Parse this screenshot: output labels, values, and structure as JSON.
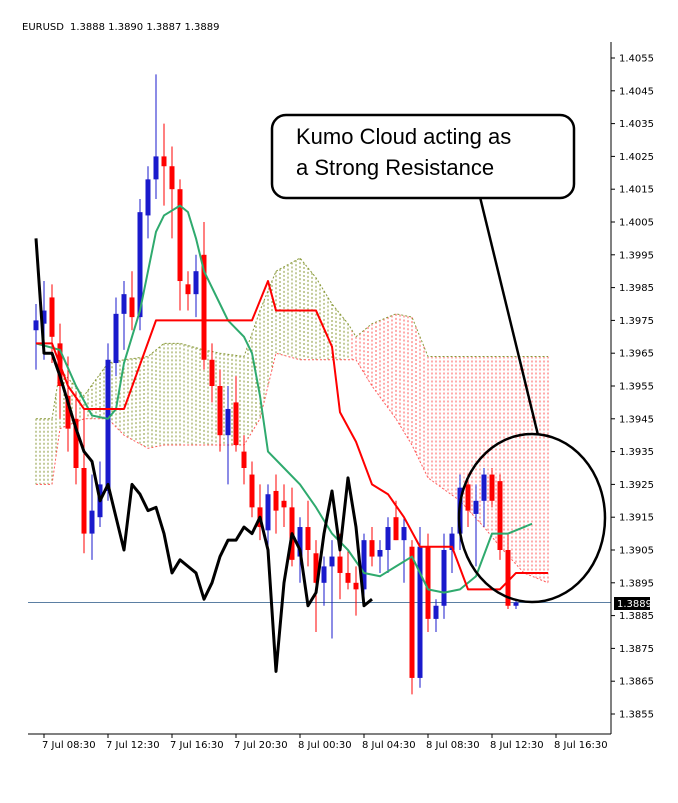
{
  "header": {
    "symbol": "EURUSD",
    "ohlc": "1.3888 1.3890 1.3887 1.3889"
  },
  "callout": {
    "line1": "Kumo Cloud acting as",
    "line2": "a Strong Resistance"
  },
  "colors": {
    "bull": "#1a1acc",
    "bear": "#ff0000",
    "tenkan": "#ff0000",
    "kijun": "#2faa6e",
    "chikou": "#000000",
    "cloud_bull": "#8a9a3a",
    "cloud_bear": "#ff5a5a",
    "current_price_line": "#5b7fa3"
  },
  "chart_data": {
    "type": "candlestick",
    "symbol": "EURUSD",
    "ylim": [
      1.385,
      1.406
    ],
    "y_ticks": [
      "1.4055",
      "1.4045",
      "1.4035",
      "1.4025",
      "1.4015",
      "1.4005",
      "1.3995",
      "1.3985",
      "1.3975",
      "1.3965",
      "1.3955",
      "1.3945",
      "1.3935",
      "1.3925",
      "1.3915",
      "1.3905",
      "1.3895",
      "1.3885",
      "1.3875",
      "1.3865",
      "1.3855"
    ],
    "x_labels": [
      {
        "label": "7 Jul 08:30",
        "index": 1
      },
      {
        "label": "7 Jul 12:30",
        "index": 9
      },
      {
        "label": "7 Jul 16:30",
        "index": 17
      },
      {
        "label": "7 Jul 20:30",
        "index": 25
      },
      {
        "label": "8 Jul 00:30",
        "index": 33
      },
      {
        "label": "8 Jul 04:30",
        "index": 41
      },
      {
        "label": "8 Jul 08:30",
        "index": 49
      },
      {
        "label": "8 Jul 12:30",
        "index": 57
      },
      {
        "label": "8 Jul 16:30",
        "index": 65
      }
    ],
    "current_price": 1.3889,
    "current_price_label": "1.3889",
    "candles": [
      {
        "o": 1.3972,
        "h": 1.398,
        "l": 1.396,
        "c": 1.3975
      },
      {
        "o": 1.3974,
        "h": 1.3987,
        "l": 1.3963,
        "c": 1.3978
      },
      {
        "o": 1.3982,
        "h": 1.3986,
        "l": 1.3962,
        "c": 1.397
      },
      {
        "o": 1.3968,
        "h": 1.3974,
        "l": 1.3945,
        "c": 1.3955
      },
      {
        "o": 1.3952,
        "h": 1.3964,
        "l": 1.3935,
        "c": 1.3942
      },
      {
        "o": 1.3945,
        "h": 1.3953,
        "l": 1.3925,
        "c": 1.393
      },
      {
        "o": 1.393,
        "h": 1.3948,
        "l": 1.3904,
        "c": 1.391
      },
      {
        "o": 1.391,
        "h": 1.3928,
        "l": 1.3902,
        "c": 1.3917
      },
      {
        "o": 1.3915,
        "h": 1.3932,
        "l": 1.3912,
        "c": 1.3925
      },
      {
        "o": 1.3923,
        "h": 1.3968,
        "l": 1.392,
        "c": 1.3963
      },
      {
        "o": 1.3962,
        "h": 1.3982,
        "l": 1.3958,
        "c": 1.3977
      },
      {
        "o": 1.3977,
        "h": 1.3987,
        "l": 1.3966,
        "c": 1.3983
      },
      {
        "o": 1.3982,
        "h": 1.399,
        "l": 1.3972,
        "c": 1.3976
      },
      {
        "o": 1.3976,
        "h": 1.4012,
        "l": 1.3972,
        "c": 1.4008
      },
      {
        "o": 1.4007,
        "h": 1.4022,
        "l": 1.4,
        "c": 1.4018
      },
      {
        "o": 1.4018,
        "h": 1.405,
        "l": 1.4012,
        "c": 1.4025
      },
      {
        "o": 1.4025,
        "h": 1.4035,
        "l": 1.401,
        "c": 1.4022
      },
      {
        "o": 1.4022,
        "h": 1.4028,
        "l": 1.4,
        "c": 1.4015
      },
      {
        "o": 1.4015,
        "h": 1.4018,
        "l": 1.3978,
        "c": 1.3987
      },
      {
        "o": 1.3986,
        "h": 1.399,
        "l": 1.3978,
        "c": 1.3983
      },
      {
        "o": 1.3983,
        "h": 1.3995,
        "l": 1.3976,
        "c": 1.399
      },
      {
        "o": 1.3995,
        "h": 1.4005,
        "l": 1.396,
        "c": 1.3963
      },
      {
        "o": 1.3963,
        "h": 1.3968,
        "l": 1.395,
        "c": 1.3955
      },
      {
        "o": 1.3955,
        "h": 1.396,
        "l": 1.3935,
        "c": 1.394
      },
      {
        "o": 1.394,
        "h": 1.3955,
        "l": 1.3925,
        "c": 1.3948
      },
      {
        "o": 1.395,
        "h": 1.3958,
        "l": 1.3935,
        "c": 1.3937
      },
      {
        "o": 1.3935,
        "h": 1.394,
        "l": 1.3925,
        "c": 1.393
      },
      {
        "o": 1.3928,
        "h": 1.3932,
        "l": 1.3915,
        "c": 1.3918
      },
      {
        "o": 1.3918,
        "h": 1.3925,
        "l": 1.3908,
        "c": 1.3912
      },
      {
        "o": 1.3911,
        "h": 1.3925,
        "l": 1.3905,
        "c": 1.3922
      },
      {
        "o": 1.3923,
        "h": 1.3928,
        "l": 1.391,
        "c": 1.3917
      },
      {
        "o": 1.392,
        "h": 1.3925,
        "l": 1.3912,
        "c": 1.3918
      },
      {
        "o": 1.3918,
        "h": 1.3924,
        "l": 1.39,
        "c": 1.3902
      },
      {
        "o": 1.3903,
        "h": 1.3915,
        "l": 1.3895,
        "c": 1.3912
      },
      {
        "o": 1.3912,
        "h": 1.392,
        "l": 1.39,
        "c": 1.3905
      },
      {
        "o": 1.3904,
        "h": 1.3908,
        "l": 1.388,
        "c": 1.3895
      },
      {
        "o": 1.3895,
        "h": 1.3903,
        "l": 1.3888,
        "c": 1.39
      },
      {
        "o": 1.39,
        "h": 1.3908,
        "l": 1.3878,
        "c": 1.3903
      },
      {
        "o": 1.3903,
        "h": 1.391,
        "l": 1.389,
        "c": 1.3898
      },
      {
        "o": 1.3898,
        "h": 1.3905,
        "l": 1.3893,
        "c": 1.3895
      },
      {
        "o": 1.3895,
        "h": 1.39,
        "l": 1.3885,
        "c": 1.3893
      },
      {
        "o": 1.3893,
        "h": 1.391,
        "l": 1.389,
        "c": 1.3908
      },
      {
        "o": 1.3908,
        "h": 1.3912,
        "l": 1.39,
        "c": 1.3903
      },
      {
        "o": 1.3903,
        "h": 1.3908,
        "l": 1.3898,
        "c": 1.3905
      },
      {
        "o": 1.3905,
        "h": 1.3915,
        "l": 1.3898,
        "c": 1.3912
      },
      {
        "o": 1.3915,
        "h": 1.392,
        "l": 1.3908,
        "c": 1.3908
      },
      {
        "o": 1.3908,
        "h": 1.3915,
        "l": 1.3895,
        "c": 1.3912
      },
      {
        "o": 1.3906,
        "h": 1.3908,
        "l": 1.3861,
        "c": 1.3866
      },
      {
        "o": 1.3866,
        "h": 1.3912,
        "l": 1.3863,
        "c": 1.3906
      },
      {
        "o": 1.3906,
        "h": 1.391,
        "l": 1.388,
        "c": 1.3884
      },
      {
        "o": 1.3884,
        "h": 1.389,
        "l": 1.388,
        "c": 1.3888
      },
      {
        "o": 1.3888,
        "h": 1.391,
        "l": 1.3884,
        "c": 1.3905
      },
      {
        "o": 1.3905,
        "h": 1.3912,
        "l": 1.3898,
        "c": 1.391
      },
      {
        "o": 1.391,
        "h": 1.3928,
        "l": 1.3905,
        "c": 1.3924
      },
      {
        "o": 1.3925,
        "h": 1.3928,
        "l": 1.3912,
        "c": 1.3917
      },
      {
        "o": 1.3916,
        "h": 1.3925,
        "l": 1.39,
        "c": 1.392
      },
      {
        "o": 1.392,
        "h": 1.393,
        "l": 1.3912,
        "c": 1.3928
      },
      {
        "o": 1.3928,
        "h": 1.393,
        "l": 1.3918,
        "c": 1.392
      },
      {
        "o": 1.3926,
        "h": 1.3928,
        "l": 1.3902,
        "c": 1.3905
      },
      {
        "o": 1.3905,
        "h": 1.391,
        "l": 1.3887,
        "c": 1.3888
      },
      {
        "o": 1.3888,
        "h": 1.389,
        "l": 1.3887,
        "c": 1.3889
      }
    ],
    "tenkan": [
      {
        "i": 0,
        "v": 1.3968
      },
      {
        "i": 2,
        "v": 1.3968
      },
      {
        "i": 4,
        "v": 1.3955
      },
      {
        "i": 6,
        "v": 1.3948
      },
      {
        "i": 11,
        "v": 1.3948
      },
      {
        "i": 15,
        "v": 1.3975
      },
      {
        "i": 27,
        "v": 1.3975
      },
      {
        "i": 29,
        "v": 1.3987
      },
      {
        "i": 30,
        "v": 1.3978
      },
      {
        "i": 35,
        "v": 1.3978
      },
      {
        "i": 37,
        "v": 1.3967
      },
      {
        "i": 38,
        "v": 1.3947
      },
      {
        "i": 40,
        "v": 1.3938
      },
      {
        "i": 42,
        "v": 1.3925
      },
      {
        "i": 44,
        "v": 1.3922
      },
      {
        "i": 46,
        "v": 1.3915
      },
      {
        "i": 48,
        "v": 1.3906
      },
      {
        "i": 52,
        "v": 1.3906
      },
      {
        "i": 54,
        "v": 1.3893
      },
      {
        "i": 58,
        "v": 1.3893
      },
      {
        "i": 60,
        "v": 1.3898
      },
      {
        "i": 64,
        "v": 1.3898
      }
    ],
    "kijun": [
      {
        "i": 0,
        "v": 1.3968
      },
      {
        "i": 3,
        "v": 1.3966
      },
      {
        "i": 5,
        "v": 1.3955
      },
      {
        "i": 7,
        "v": 1.3946
      },
      {
        "i": 9,
        "v": 1.3945
      },
      {
        "i": 10,
        "v": 1.3948
      },
      {
        "i": 11,
        "v": 1.3962
      },
      {
        "i": 13,
        "v": 1.3978
      },
      {
        "i": 14,
        "v": 1.399
      },
      {
        "i": 15,
        "v": 1.4002
      },
      {
        "i": 16,
        "v": 1.4007
      },
      {
        "i": 18,
        "v": 1.401
      },
      {
        "i": 19,
        "v": 1.4008
      },
      {
        "i": 20,
        "v": 1.4
      },
      {
        "i": 21,
        "v": 1.399
      },
      {
        "i": 23,
        "v": 1.398
      },
      {
        "i": 24,
        "v": 1.3975
      },
      {
        "i": 26,
        "v": 1.397
      },
      {
        "i": 27,
        "v": 1.3965
      },
      {
        "i": 28,
        "v": 1.3952
      },
      {
        "i": 29,
        "v": 1.3935
      },
      {
        "i": 31,
        "v": 1.393
      },
      {
        "i": 33,
        "v": 1.3925
      },
      {
        "i": 35,
        "v": 1.3918
      },
      {
        "i": 37,
        "v": 1.391
      },
      {
        "i": 39,
        "v": 1.3905
      },
      {
        "i": 41,
        "v": 1.3898
      },
      {
        "i": 43,
        "v": 1.3897
      },
      {
        "i": 45,
        "v": 1.39
      },
      {
        "i": 47,
        "v": 1.3903
      },
      {
        "i": 49,
        "v": 1.3893
      },
      {
        "i": 51,
        "v": 1.3892
      },
      {
        "i": 53,
        "v": 1.3893
      },
      {
        "i": 55,
        "v": 1.3897
      },
      {
        "i": 57,
        "v": 1.391
      },
      {
        "i": 59,
        "v": 1.391
      },
      {
        "i": 61,
        "v": 1.3912
      },
      {
        "i": 62,
        "v": 1.3913
      }
    ],
    "chikou": [
      {
        "i": 0,
        "v": 1.4
      },
      {
        "i": 1,
        "v": 1.3965
      },
      {
        "i": 2,
        "v": 1.3965
      },
      {
        "i": 3,
        "v": 1.3958
      },
      {
        "i": 4,
        "v": 1.395
      },
      {
        "i": 5,
        "v": 1.3942
      },
      {
        "i": 6,
        "v": 1.3935
      },
      {
        "i": 7,
        "v": 1.3932
      },
      {
        "i": 8,
        "v": 1.392
      },
      {
        "i": 9,
        "v": 1.3925
      },
      {
        "i": 10,
        "v": 1.3915
      },
      {
        "i": 11,
        "v": 1.3905
      },
      {
        "i": 12,
        "v": 1.3925
      },
      {
        "i": 13,
        "v": 1.3922
      },
      {
        "i": 14,
        "v": 1.3917
      },
      {
        "i": 15,
        "v": 1.3918
      },
      {
        "i": 16,
        "v": 1.391
      },
      {
        "i": 17,
        "v": 1.3898
      },
      {
        "i": 18,
        "v": 1.3902
      },
      {
        "i": 19,
        "v": 1.39
      },
      {
        "i": 20,
        "v": 1.3898
      },
      {
        "i": 21,
        "v": 1.389
      },
      {
        "i": 22,
        "v": 1.3895
      },
      {
        "i": 23,
        "v": 1.3903
      },
      {
        "i": 24,
        "v": 1.3908
      },
      {
        "i": 25,
        "v": 1.3908
      },
      {
        "i": 26,
        "v": 1.3912
      },
      {
        "i": 27,
        "v": 1.391
      },
      {
        "i": 28,
        "v": 1.3915
      },
      {
        "i": 29,
        "v": 1.3905
      },
      {
        "i": 30,
        "v": 1.3868
      },
      {
        "i": 31,
        "v": 1.3895
      },
      {
        "i": 32,
        "v": 1.391
      },
      {
        "i": 33,
        "v": 1.3905
      },
      {
        "i": 34,
        "v": 1.3888
      },
      {
        "i": 35,
        "v": 1.3892
      },
      {
        "i": 36,
        "v": 1.391
      },
      {
        "i": 37,
        "v": 1.3923
      },
      {
        "i": 38,
        "v": 1.3905
      },
      {
        "i": 39,
        "v": 1.3927
      },
      {
        "i": 40,
        "v": 1.3912
      },
      {
        "i": 41,
        "v": 1.3888
      },
      {
        "i": 42,
        "v": 1.389
      }
    ],
    "cloud": [
      {
        "i": 0,
        "top": 1.3945,
        "bottom": 1.3925
      },
      {
        "i": 2,
        "top": 1.3945,
        "bottom": 1.3925
      },
      {
        "i": 3,
        "top": 1.396,
        "bottom": 1.3942
      },
      {
        "i": 6,
        "top": 1.3952,
        "bottom": 1.3945
      },
      {
        "i": 9,
        "top": 1.3962,
        "bottom": 1.3945
      },
      {
        "i": 11,
        "top": 1.3963,
        "bottom": 1.394
      },
      {
        "i": 14,
        "top": 1.3964,
        "bottom": 1.3936
      },
      {
        "i": 16,
        "top": 1.3968,
        "bottom": 1.3937
      },
      {
        "i": 18,
        "top": 1.3968,
        "bottom": 1.3937
      },
      {
        "i": 21,
        "top": 1.3966,
        "bottom": 1.3937
      },
      {
        "i": 23,
        "top": 1.3965,
        "bottom": 1.3937
      },
      {
        "i": 26,
        "top": 1.3964,
        "bottom": 1.3937
      },
      {
        "i": 28,
        "top": 1.3978,
        "bottom": 1.3945
      },
      {
        "i": 30,
        "top": 1.399,
        "bottom": 1.3965
      },
      {
        "i": 33,
        "top": 1.3994,
        "bottom": 1.3963
      },
      {
        "i": 35,
        "top": 1.3988,
        "bottom": 1.3963
      },
      {
        "i": 37,
        "top": 1.398,
        "bottom": 1.3963
      },
      {
        "i": 39,
        "top": 1.3974,
        "bottom": 1.3963
      },
      {
        "i": 40,
        "top": 1.397,
        "bottom": 1.3963
      },
      {
        "i": 42,
        "top": 1.3974,
        "bottom": 1.3955
      },
      {
        "i": 45,
        "top": 1.3977,
        "bottom": 1.3945
      },
      {
        "i": 47,
        "top": 1.3976,
        "bottom": 1.3937
      },
      {
        "i": 49,
        "top": 1.3964,
        "bottom": 1.3927
      },
      {
        "i": 53,
        "top": 1.3964,
        "bottom": 1.392
      },
      {
        "i": 56,
        "top": 1.3964,
        "bottom": 1.3912
      },
      {
        "i": 58,
        "top": 1.3964,
        "bottom": 1.3906
      },
      {
        "i": 61,
        "top": 1.3964,
        "bottom": 1.3898
      },
      {
        "i": 64,
        "top": 1.3964,
        "bottom": 1.3895
      }
    ],
    "cloud_twist_index": 39.5
  }
}
